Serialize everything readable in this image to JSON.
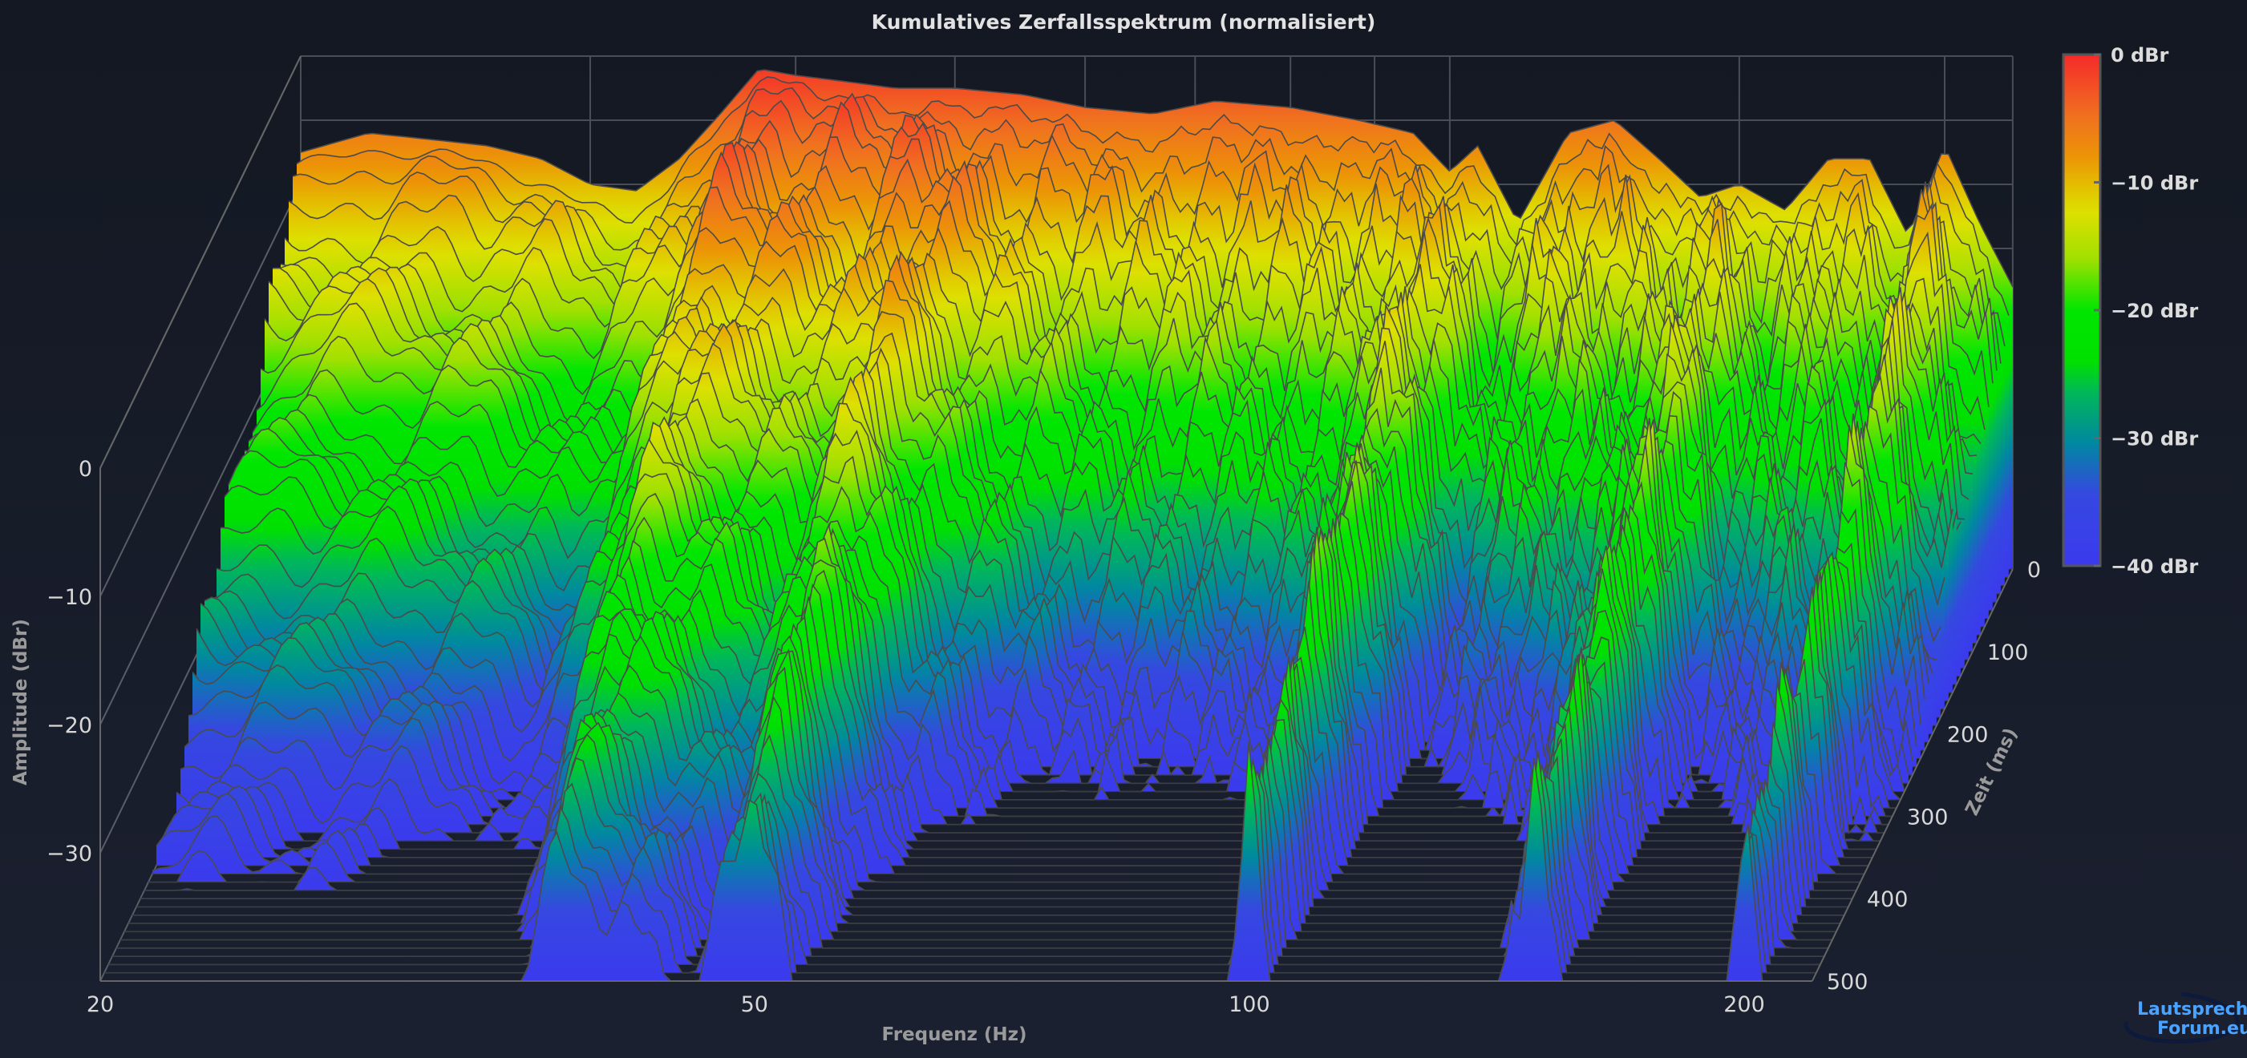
{
  "chart_data": {
    "type": "waterfall",
    "title": "Kumulatives Zerfallsspektrum (normalisiert)",
    "xlabel": "Frequenz (Hz)",
    "ylabel": "Amplitude (dBr)",
    "zlabel": "Zeit (ms)",
    "x_scale": "log",
    "xlim": [
      20,
      220
    ],
    "ylim": [
      -40,
      0
    ],
    "zlim": [
      0,
      500
    ],
    "x_ticks": [
      "20",
      "50",
      "100",
      "200"
    ],
    "x_tick_values": [
      20,
      50,
      100,
      200
    ],
    "y_ticks": [
      "0",
      "−10",
      "−20",
      "−30"
    ],
    "y_tick_values": [
      0,
      -10,
      -20,
      -30
    ],
    "z_ticks": [
      "0",
      "100",
      "200",
      "300",
      "400",
      "500"
    ],
    "z_tick_values": [
      0,
      100,
      200,
      300,
      400,
      500
    ],
    "colorbar": {
      "labels": [
        "0 dBr",
        "−10 dBr",
        "−20 dBr",
        "−30 dBr",
        "−40 dBr"
      ],
      "values": [
        0,
        -10,
        -20,
        -30,
        -40
      ],
      "colors": [
        "#f52a2a",
        "#f07020",
        "#ec9406",
        "#e2c800",
        "#dde000",
        "#a0e000",
        "#00e600",
        "#00e000",
        "#00b858",
        "#0088a0",
        "#3548e0",
        "#3b3aee"
      ]
    },
    "frequencies_hz": [
      20,
      22,
      24,
      26,
      28,
      30,
      32,
      34,
      36,
      38,
      40,
      43,
      46,
      50,
      55,
      60,
      66,
      72,
      80,
      88,
      95,
      100,
      104,
      110,
      118,
      126,
      134,
      142,
      150,
      160,
      170,
      180,
      190,
      200,
      210,
      220
    ],
    "level_at_0ms_dbr": [
      -7.5,
      -6,
      -6.5,
      -7,
      -8,
      -10,
      -10.5,
      -8,
      -4.5,
      -1,
      -1.5,
      -2,
      -2.5,
      -2.5,
      -3,
      -4,
      -4.5,
      -3.5,
      -4,
      -5,
      -6,
      -9,
      -7,
      -13,
      -6,
      -5,
      -8,
      -11,
      -10,
      -12,
      -8,
      -8,
      -14,
      -7,
      -13,
      -18
    ],
    "decay_db_per_100ms": [
      9,
      9,
      9,
      9,
      9,
      9,
      10,
      9,
      7,
      5.5,
      6,
      7,
      8,
      4.5,
      10,
      12,
      14,
      14,
      14,
      13,
      10,
      3,
      8,
      12,
      12,
      12,
      10,
      6,
      3,
      10,
      12,
      10,
      10,
      4,
      8,
      8
    ]
  },
  "logo": {
    "line1": "Lautsprecher",
    "line2": "Forum.eu"
  }
}
